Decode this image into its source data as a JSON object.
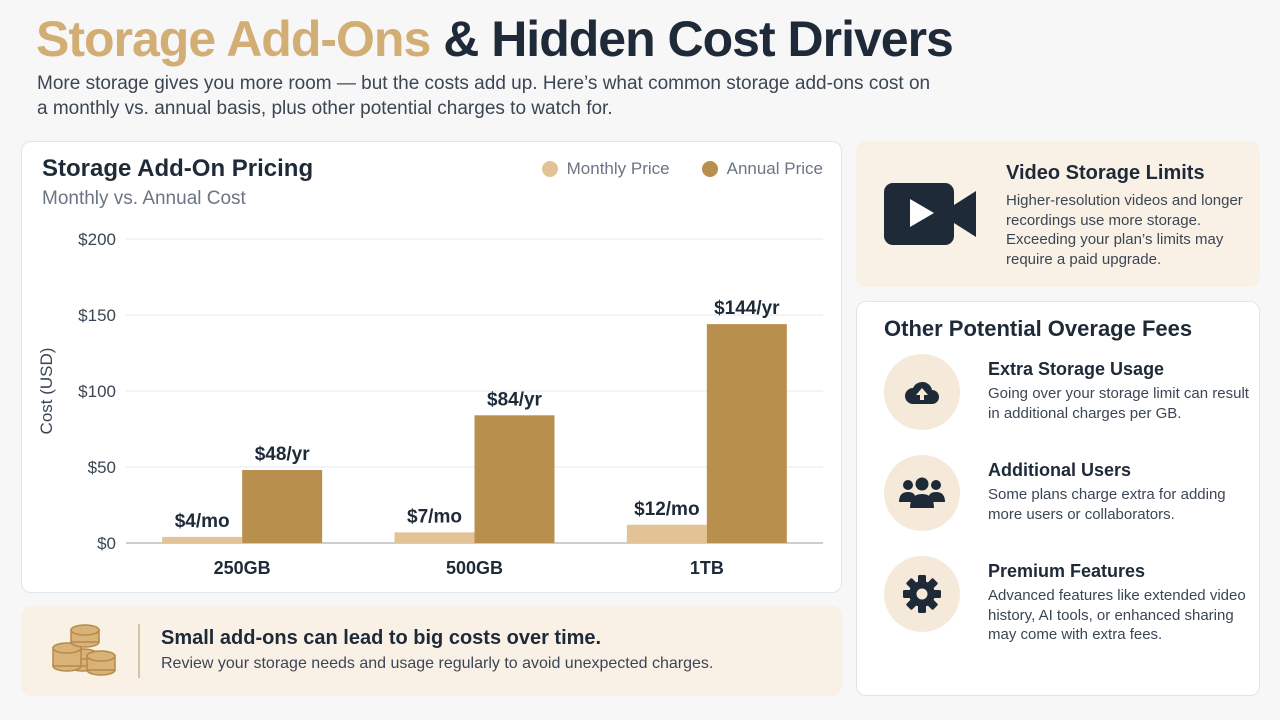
{
  "header": {
    "title_accent": "Storage Add-Ons",
    "title_rest": "& Hidden Cost Drivers",
    "subtitle": "More storage gives you more room — but the costs add up. Here’s what common storage add-ons cost on a monthly vs. annual basis, plus other potential charges to watch for."
  },
  "chart_data": {
    "type": "bar",
    "title": "Storage Add-On Pricing",
    "subtitle": "Monthly vs. Annual Cost",
    "ylabel": "Cost (USD)",
    "xlabel": "",
    "categories": [
      "250GB",
      "500GB",
      "1TB"
    ],
    "ylim": [
      0,
      200
    ],
    "yticks": [
      0,
      50,
      100,
      150,
      200
    ],
    "ytick_labels": [
      "$0",
      "$50",
      "$100",
      "$150",
      "$200"
    ],
    "grid": true,
    "legend_position": "top-right",
    "series": [
      {
        "name": "Monthly Price",
        "color": "#e3c396",
        "values": [
          4,
          7,
          12
        ],
        "labels": [
          "$4/mo",
          "$7/mo",
          "$12/mo"
        ]
      },
      {
        "name": "Annual Price",
        "color": "#b88f4d",
        "values": [
          48,
          84,
          144
        ],
        "labels": [
          "$48/yr",
          "$84/yr",
          "$144/yr"
        ]
      }
    ]
  },
  "tip": {
    "icon": "coins-icon",
    "title": "Small add-ons can lead to big costs over time.",
    "text": "Review your storage needs and usage regularly to avoid unexpected charges."
  },
  "video_card": {
    "icon": "video-camera-icon",
    "title": "Video Storage Limits",
    "text": "Higher-resolution videos and longer recordings use more storage. Exceeding your plan’s limits may require a paid upgrade."
  },
  "fees": {
    "title": "Other Potential Overage Fees",
    "items": [
      {
        "icon": "cloud-upload-icon",
        "title": "Extra Storage Usage",
        "text": "Going over your storage limit can result in additional charges per GB."
      },
      {
        "icon": "users-icon",
        "title": "Additional Users",
        "text": "Some plans charge extra for adding more users or collaborators."
      },
      {
        "icon": "gear-icon",
        "title": "Premium Features",
        "text": "Advanced features like extended video history, AI tools, or enhanced sharing may come with extra fees."
      }
    ]
  },
  "colors": {
    "accent": "#d2ad74",
    "dark": "#1e2a38",
    "card_tint": "#faf1e6",
    "monthly": "#e3c396",
    "annual": "#b88f4d"
  }
}
